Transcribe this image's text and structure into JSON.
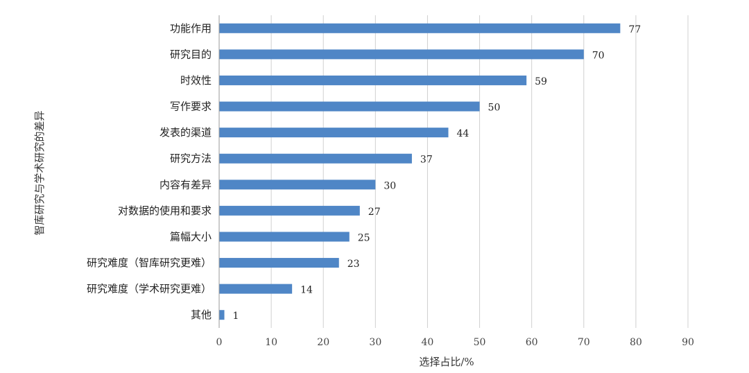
{
  "chart_data": {
    "type": "bar",
    "orientation": "horizontal",
    "categories": [
      "功能作用",
      "研究目的",
      "时效性",
      "写作要求",
      "发表的渠道",
      "研究方法",
      "内容有差异",
      "对数据的使用和要求",
      "篇幅大小",
      "研究难度（智库研究更难）",
      "研究难度（学术研究更难）",
      "其他"
    ],
    "values": [
      77,
      70,
      59,
      50,
      44,
      37,
      30,
      27,
      25,
      23,
      14,
      1
    ],
    "xlabel": "选择占比/%",
    "ylabel": "智库研究与学术研究的差异",
    "xlim": [
      0,
      90
    ],
    "xticks": [
      0,
      10,
      20,
      30,
      40,
      50,
      60,
      70,
      80,
      90
    ],
    "grid": "vertical",
    "legend": "none",
    "bar_color": "#4f86c6",
    "data_labels": true
  }
}
